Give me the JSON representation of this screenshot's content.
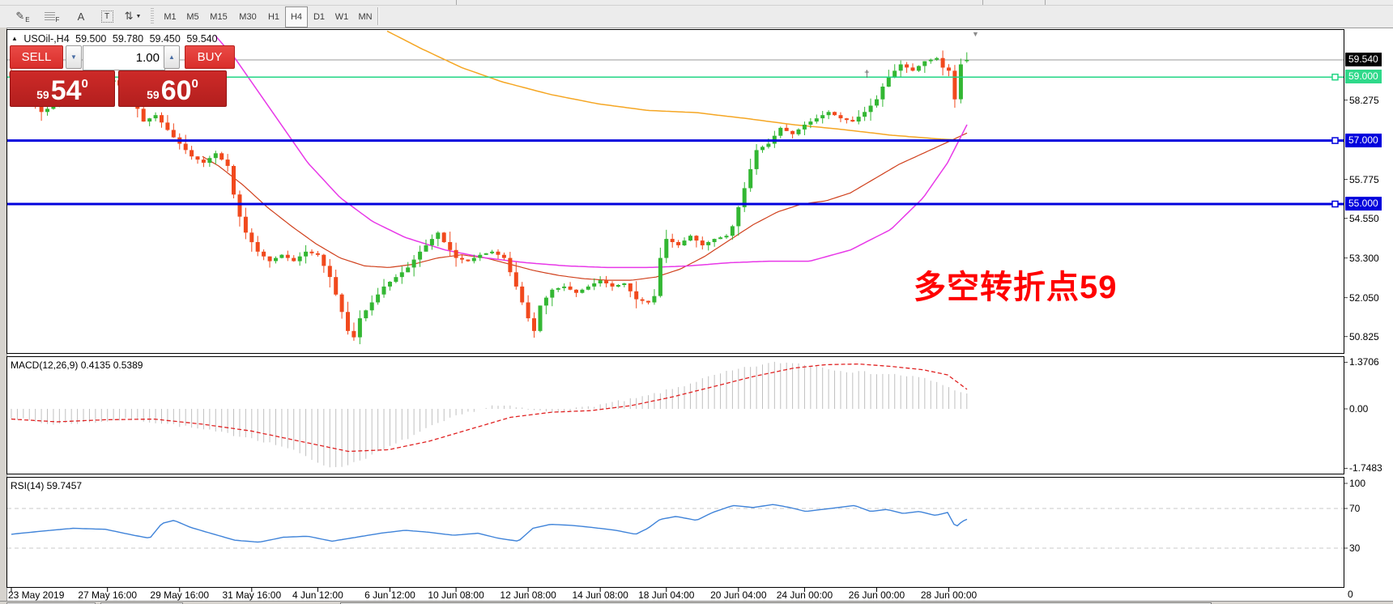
{
  "toolbar": {
    "tools": [
      {
        "name": "channel-draw-icon",
        "glyph": "✎",
        "sub": "E"
      },
      {
        "name": "fibonacci-grid-icon",
        "glyph": "",
        "sub": "F",
        "kind": "grid"
      },
      {
        "name": "text-label-icon",
        "glyph": "A"
      },
      {
        "name": "text-box-icon",
        "glyph": "T",
        "kind": "dotbox"
      },
      {
        "name": "arrows-tool-icon",
        "glyph": "⇅",
        "caret": "▼"
      }
    ],
    "timeframes": [
      "M1",
      "M5",
      "M15",
      "M30",
      "H1",
      "H4",
      "D1",
      "W1",
      "MN"
    ],
    "selected_timeframe": "H4"
  },
  "chart_header": {
    "collapse_glyph": "▲",
    "symbol_period": "USOil-,H4",
    "open": "59.500",
    "high": "59.780",
    "low": "59.450",
    "close": "59.540"
  },
  "trade_panel": {
    "sell_label": "SELL",
    "buy_label": "BUY",
    "volume": "1.00",
    "spin_down_glyph": "▼",
    "spin_up_glyph": "▲",
    "sell_price": {
      "small": "59",
      "big": "54",
      "sup": "0"
    },
    "buy_price": {
      "small": "59",
      "big": "60",
      "sup": "0"
    }
  },
  "annotation": {
    "text": "多空转折点59",
    "color": "#ff0000"
  },
  "indicators": {
    "macd_label": "MACD(12,26,9) 0.4135 0.5389",
    "rsi_label": "RSI(14) 59.7457"
  },
  "misc": {
    "dagger_glyph": "†",
    "shift_glyph": "▼",
    "axis_zero": "0"
  },
  "chart_data": {
    "type": "candlestick",
    "symbol": "USOil",
    "period": "H4",
    "current_bar_ohlc": {
      "open": 59.5,
      "high": 59.78,
      "low": 59.45,
      "close": 59.54
    },
    "colors": {
      "up": "#33b733",
      "down": "#f1491d",
      "ma_fast": "#d0401c",
      "ma_mid": "#e838e8",
      "ma_slow": "#f5a623",
      "hline_green": "#22d584",
      "hline_blue": "#0000dd",
      "current_line": "#9a9a9a",
      "macd_hist": "#c0c0c0",
      "macd_signal": "#e02020",
      "rsi_line": "#3f83d9"
    },
    "price_axis": {
      "plain_ticks": [
        58.275,
        55.775,
        54.55,
        53.3,
        52.05,
        50.825
      ],
      "tagged_ticks": [
        {
          "label": "59.540",
          "price": 59.54,
          "bg": "#000000"
        },
        {
          "label": "59.000",
          "price": 59.0,
          "bg": "#2fd98a"
        },
        {
          "label": "57.000",
          "price": 57.0,
          "bg": "#0000dd"
        },
        {
          "label": "55.000",
          "price": 55.0,
          "bg": "#0000dd"
        }
      ]
    },
    "hlines": [
      {
        "price": 59.0,
        "color": "#22d584",
        "width": 1.5
      },
      {
        "price": 57.0,
        "color": "#0000dd",
        "width": 3
      },
      {
        "price": 55.0,
        "color": "#0000dd",
        "width": 3
      }
    ],
    "current_price": 59.54,
    "bars": 160,
    "time_axis": [
      {
        "bar": 0,
        "text": "23 May 2019"
      },
      {
        "bar": 16,
        "text": "27 May 16:00"
      },
      {
        "bar": 28,
        "text": "29 May 16:00"
      },
      {
        "bar": 40,
        "text": "31 May 16:00"
      },
      {
        "bar": 51,
        "text": "4 Jun 12:00"
      },
      {
        "bar": 63,
        "text": "6 Jun 12:00"
      },
      {
        "bar": 74,
        "text": "10 Jun 08:00"
      },
      {
        "bar": 86,
        "text": "12 Jun 08:00"
      },
      {
        "bar": 98,
        "text": "14 Jun 08:00"
      },
      {
        "bar": 109,
        "text": "18 Jun 04:00"
      },
      {
        "bar": 121,
        "text": "20 Jun 04:00"
      },
      {
        "bar": 132,
        "text": "24 Jun 00:00"
      },
      {
        "bar": 144,
        "text": "26 Jun 00:00"
      },
      {
        "bar": 156,
        "text": "28 Jun 00:00"
      }
    ],
    "price_path": [
      [
        0,
        59.0
      ],
      [
        3,
        58.4
      ],
      [
        5,
        57.9
      ],
      [
        9,
        58.3
      ],
      [
        12,
        58.6
      ],
      [
        15,
        58.8
      ],
      [
        17,
        58.9
      ],
      [
        20,
        58.4
      ],
      [
        22,
        57.6
      ],
      [
        24,
        57.8
      ],
      [
        27,
        57.1
      ],
      [
        30,
        56.5
      ],
      [
        32,
        56.3
      ],
      [
        34,
        56.6
      ],
      [
        36,
        56.2
      ],
      [
        37,
        55.3
      ],
      [
        38,
        54.6
      ],
      [
        39,
        54.1
      ],
      [
        41,
        53.5
      ],
      [
        43,
        53.2
      ],
      [
        45,
        53.4
      ],
      [
        47,
        53.2
      ],
      [
        49,
        53.5
      ],
      [
        51,
        53.4
      ],
      [
        53,
        52.7
      ],
      [
        55,
        51.6
      ],
      [
        56,
        51.0
      ],
      [
        57,
        50.8
      ],
      [
        58,
        51.4
      ],
      [
        60,
        51.9
      ],
      [
        62,
        52.4
      ],
      [
        64,
        52.7
      ],
      [
        66,
        53.0
      ],
      [
        68,
        53.5
      ],
      [
        70,
        53.9
      ],
      [
        71,
        54.1
      ],
      [
        72,
        53.8
      ],
      [
        74,
        53.3
      ],
      [
        76,
        53.2
      ],
      [
        78,
        53.4
      ],
      [
        80,
        53.5
      ],
      [
        82,
        53.3
      ],
      [
        84,
        52.4
      ],
      [
        86,
        51.4
      ],
      [
        87,
        51.0
      ],
      [
        88,
        51.8
      ],
      [
        90,
        52.3
      ],
      [
        92,
        52.4
      ],
      [
        94,
        52.2
      ],
      [
        96,
        52.4
      ],
      [
        98,
        52.6
      ],
      [
        100,
        52.4
      ],
      [
        102,
        52.5
      ],
      [
        104,
        52.0
      ],
      [
        106,
        51.9
      ],
      [
        107,
        52.1
      ],
      [
        108,
        53.3
      ],
      [
        109,
        53.9
      ],
      [
        111,
        53.7
      ],
      [
        113,
        54.0
      ],
      [
        115,
        53.7
      ],
      [
        117,
        53.9
      ],
      [
        119,
        54.0
      ],
      [
        120,
        54.3
      ],
      [
        121,
        54.9
      ],
      [
        122,
        55.5
      ],
      [
        123,
        56.1
      ],
      [
        124,
        56.7
      ],
      [
        126,
        56.9
      ],
      [
        128,
        57.4
      ],
      [
        130,
        57.2
      ],
      [
        132,
        57.5
      ],
      [
        134,
        57.7
      ],
      [
        136,
        57.9
      ],
      [
        138,
        57.7
      ],
      [
        140,
        57.6
      ],
      [
        142,
        57.9
      ],
      [
        144,
        58.3
      ],
      [
        145,
        58.7
      ],
      [
        146,
        59.0
      ],
      [
        147,
        59.2
      ],
      [
        148,
        59.4
      ],
      [
        150,
        59.2
      ],
      [
        152,
        59.5
      ],
      [
        154,
        59.6
      ],
      [
        155,
        59.3
      ],
      [
        156,
        59.2
      ],
      [
        157,
        58.3
      ],
      [
        158,
        59.4
      ],
      [
        159,
        59.54
      ]
    ],
    "moving_averages": [
      {
        "name": "ma-fast-red",
        "color": "#d0401c",
        "width": 1.2,
        "points": [
          [
            250,
            56.5
          ],
          [
            270,
            56.2
          ],
          [
            300,
            55.6
          ],
          [
            330,
            54.9
          ],
          [
            360,
            54.3
          ],
          [
            390,
            53.75
          ],
          [
            420,
            53.3
          ],
          [
            450,
            53.05
          ],
          [
            480,
            53.0
          ],
          [
            510,
            53.1
          ],
          [
            540,
            53.3
          ],
          [
            570,
            53.4
          ],
          [
            600,
            53.3
          ],
          [
            630,
            53.1
          ],
          [
            660,
            52.9
          ],
          [
            690,
            52.75
          ],
          [
            720,
            52.65
          ],
          [
            750,
            52.6
          ],
          [
            780,
            52.6
          ],
          [
            810,
            52.7
          ],
          [
            840,
            52.95
          ],
          [
            870,
            53.35
          ],
          [
            900,
            53.85
          ],
          [
            930,
            54.35
          ],
          [
            960,
            54.75
          ],
          [
            990,
            55.0
          ],
          [
            1020,
            55.1
          ],
          [
            1050,
            55.35
          ],
          [
            1080,
            55.8
          ],
          [
            1110,
            56.25
          ],
          [
            1140,
            56.6
          ],
          [
            1170,
            56.95
          ],
          [
            1195,
            57.25
          ]
        ]
      },
      {
        "name": "ma-mid-magenta",
        "color": "#e838e8",
        "width": 1.5,
        "points": [
          [
            266,
            60.3
          ],
          [
            290,
            59.6
          ],
          [
            320,
            58.5
          ],
          [
            350,
            57.4
          ],
          [
            380,
            56.3
          ],
          [
            420,
            55.2
          ],
          [
            460,
            54.45
          ],
          [
            500,
            53.95
          ],
          [
            550,
            53.55
          ],
          [
            600,
            53.3
          ],
          [
            650,
            53.15
          ],
          [
            700,
            53.05
          ],
          [
            750,
            53.0
          ],
          [
            800,
            53.0
          ],
          [
            850,
            53.05
          ],
          [
            900,
            53.15
          ],
          [
            950,
            53.2
          ],
          [
            1000,
            53.2
          ],
          [
            1050,
            53.55
          ],
          [
            1100,
            54.2
          ],
          [
            1140,
            55.2
          ],
          [
            1170,
            56.3
          ],
          [
            1196,
            57.6
          ]
        ]
      },
      {
        "name": "ma-slow-orange",
        "color": "#f5a623",
        "width": 1.5,
        "points": [
          [
            478,
            60.45
          ],
          [
            520,
            59.9
          ],
          [
            570,
            59.3
          ],
          [
            620,
            58.85
          ],
          [
            680,
            58.45
          ],
          [
            740,
            58.15
          ],
          [
            800,
            57.95
          ],
          [
            860,
            57.88
          ],
          [
            920,
            57.7
          ],
          [
            980,
            57.5
          ],
          [
            1040,
            57.35
          ],
          [
            1100,
            57.17
          ],
          [
            1160,
            57.05
          ],
          [
            1195,
            57.0
          ]
        ]
      }
    ],
    "macd": {
      "label": "MACD(12,26,9)",
      "main_value": 0.4135,
      "signal_value": 0.5389,
      "axis_ticks": [
        "1.3706",
        "0.00",
        "-1.7483"
      ],
      "axis_values": [
        1.3706,
        0.0,
        -1.7483
      ],
      "hist_path": [
        [
          14,
          -0.25
        ],
        [
          60,
          -0.45
        ],
        [
          110,
          -0.4
        ],
        [
          160,
          -0.3
        ],
        [
          210,
          -0.45
        ],
        [
          260,
          -0.65
        ],
        [
          310,
          -0.85
        ],
        [
          355,
          -1.15
        ],
        [
          395,
          -1.6
        ],
        [
          415,
          -1.748
        ],
        [
          440,
          -1.55
        ],
        [
          470,
          -1.25
        ],
        [
          500,
          -0.9
        ],
        [
          530,
          -0.55
        ],
        [
          560,
          -0.25
        ],
        [
          585,
          -0.05
        ],
        [
          610,
          0.1
        ],
        [
          635,
          0.05
        ],
        [
          660,
          -0.05
        ],
        [
          685,
          -0.1
        ],
        [
          710,
          0.0
        ],
        [
          735,
          0.1
        ],
        [
          760,
          0.2
        ],
        [
          785,
          0.3
        ],
        [
          810,
          0.45
        ],
        [
          840,
          0.65
        ],
        [
          870,
          0.9
        ],
        [
          900,
          1.1
        ],
        [
          930,
          1.25
        ],
        [
          960,
          1.37
        ],
        [
          990,
          1.33
        ],
        [
          1020,
          1.2
        ],
        [
          1050,
          1.1
        ],
        [
          1080,
          1.05
        ],
        [
          1110,
          1.0
        ],
        [
          1140,
          0.9
        ],
        [
          1165,
          0.7
        ],
        [
          1185,
          0.5
        ],
        [
          1196,
          0.4135
        ]
      ],
      "signal_path": [
        [
          14,
          -0.3
        ],
        [
          70,
          -0.38
        ],
        [
          130,
          -0.32
        ],
        [
          190,
          -0.3
        ],
        [
          250,
          -0.45
        ],
        [
          310,
          -0.65
        ],
        [
          370,
          -0.95
        ],
        [
          430,
          -1.25
        ],
        [
          480,
          -1.2
        ],
        [
          530,
          -0.95
        ],
        [
          580,
          -0.6
        ],
        [
          630,
          -0.25
        ],
        [
          680,
          -0.1
        ],
        [
          730,
          -0.05
        ],
        [
          780,
          0.1
        ],
        [
          830,
          0.35
        ],
        [
          880,
          0.65
        ],
        [
          930,
          0.95
        ],
        [
          980,
          1.2
        ],
        [
          1020,
          1.3
        ],
        [
          1060,
          1.32
        ],
        [
          1100,
          1.25
        ],
        [
          1140,
          1.15
        ],
        [
          1170,
          1.0
        ],
        [
          1196,
          0.5389
        ]
      ]
    },
    "rsi": {
      "label": "RSI(14)",
      "value": 59.7457,
      "axis_ticks": [
        "100",
        "70",
        "30"
      ],
      "levels": [
        70,
        30
      ],
      "path": [
        [
          14,
          44
        ],
        [
          50,
          47
        ],
        [
          90,
          50
        ],
        [
          130,
          49
        ],
        [
          165,
          43
        ],
        [
          185,
          40
        ],
        [
          200,
          55
        ],
        [
          215,
          58
        ],
        [
          235,
          51
        ],
        [
          260,
          45
        ],
        [
          290,
          38
        ],
        [
          320,
          36
        ],
        [
          350,
          41
        ],
        [
          380,
          42
        ],
        [
          410,
          37
        ],
        [
          440,
          41
        ],
        [
          470,
          45
        ],
        [
          500,
          48
        ],
        [
          530,
          46
        ],
        [
          560,
          43
        ],
        [
          590,
          45
        ],
        [
          615,
          40
        ],
        [
          640,
          37
        ],
        [
          658,
          50
        ],
        [
          680,
          54
        ],
        [
          705,
          53
        ],
        [
          730,
          51
        ],
        [
          760,
          48
        ],
        [
          785,
          44
        ],
        [
          800,
          50
        ],
        [
          815,
          59
        ],
        [
          835,
          62
        ],
        [
          860,
          58
        ],
        [
          880,
          66
        ],
        [
          905,
          73
        ],
        [
          930,
          71
        ],
        [
          955,
          74
        ],
        [
          975,
          71
        ],
        [
          995,
          67
        ],
        [
          1015,
          69
        ],
        [
          1035,
          71
        ],
        [
          1055,
          73
        ],
        [
          1075,
          67
        ],
        [
          1095,
          69
        ],
        [
          1115,
          65
        ],
        [
          1135,
          67
        ],
        [
          1155,
          63
        ],
        [
          1170,
          66
        ],
        [
          1180,
          51
        ],
        [
          1188,
          57
        ],
        [
          1196,
          59.7
        ]
      ]
    }
  },
  "bottom_tabs": {
    "count": 2
  }
}
